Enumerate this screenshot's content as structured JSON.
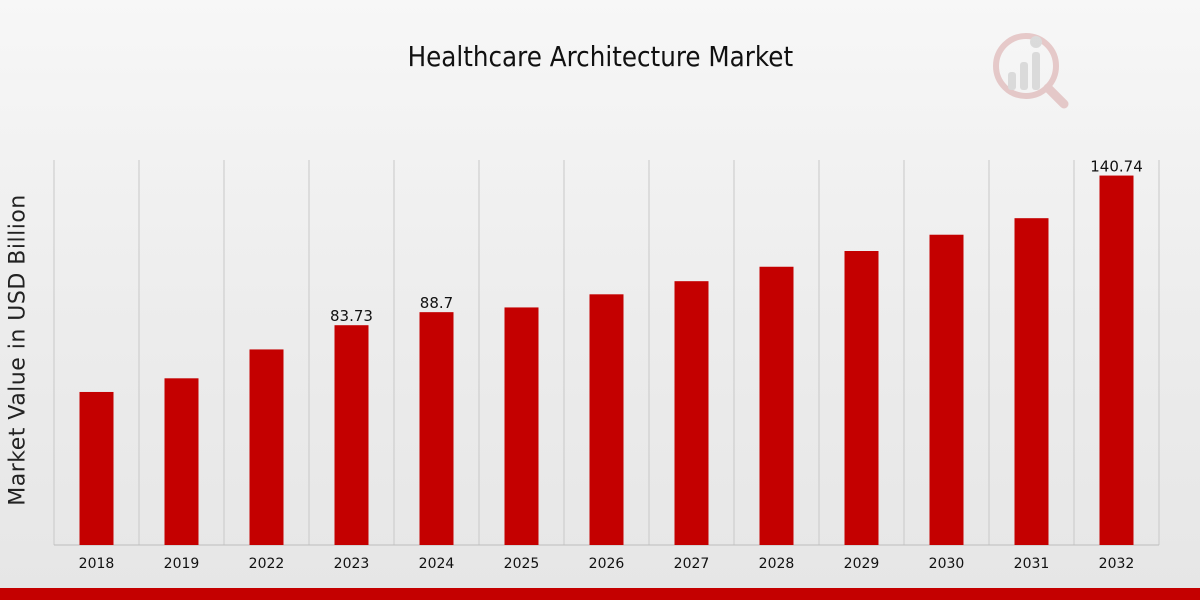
{
  "chart_data": {
    "type": "bar",
    "title": "Healthcare Architecture Market",
    "xlabel": "",
    "ylabel": "Market Value in USD Billion",
    "categories": [
      "2018",
      "2019",
      "2022",
      "2023",
      "2024",
      "2025",
      "2026",
      "2027",
      "2028",
      "2029",
      "2030",
      "2031",
      "2032"
    ],
    "values": [
      58.3,
      63.5,
      74.5,
      83.73,
      88.7,
      90.5,
      95.5,
      100.5,
      106.0,
      112.0,
      118.2,
      124.5,
      140.74
    ],
    "data_labels": [
      "",
      "",
      "",
      "83.73",
      "88.7",
      "",
      "",
      "",
      "",
      "",
      "",
      "",
      "140.74"
    ],
    "ylim": [
      0,
      150
    ],
    "grid": "vertical",
    "legend": "none"
  },
  "colors": {
    "bar": "#c40000",
    "accent_bar": "#c40000",
    "grid": "#c8c8c8",
    "logo": "#b03030"
  },
  "icons": {
    "logo": "analytics-magnifier-logo-icon"
  }
}
